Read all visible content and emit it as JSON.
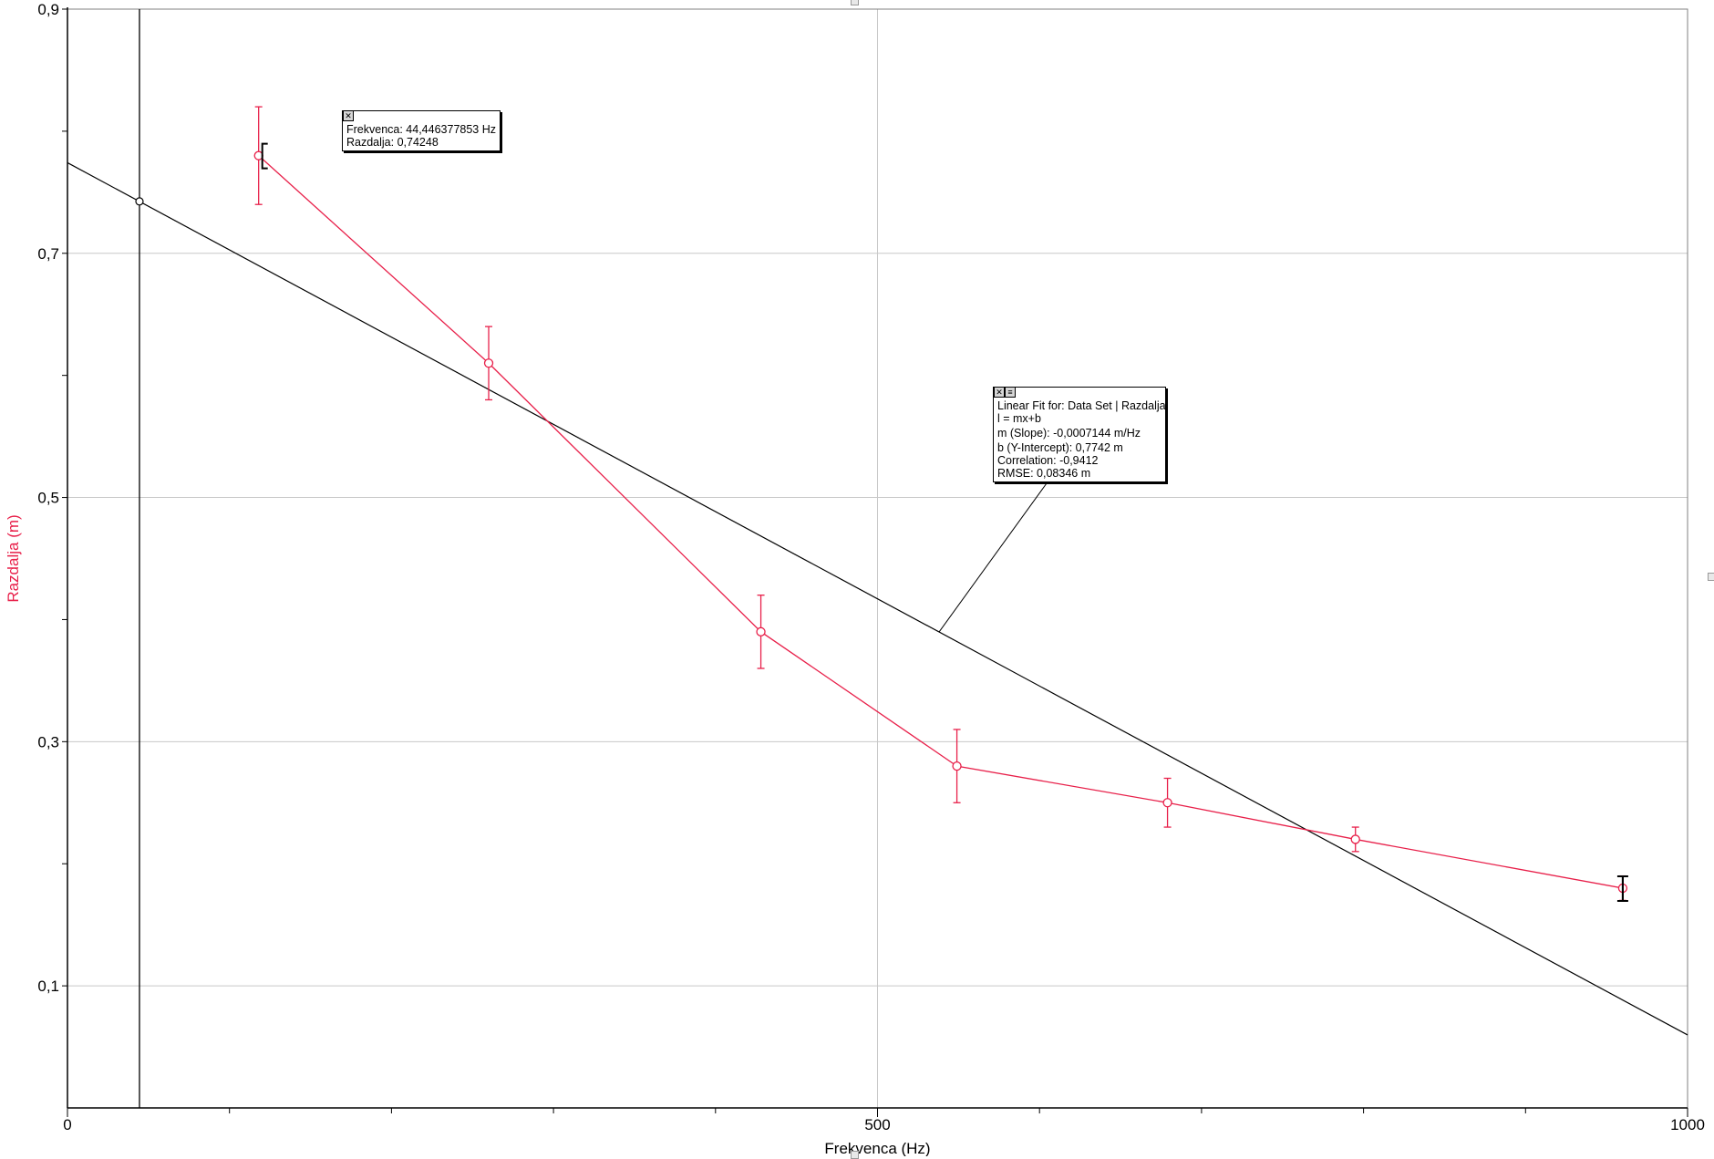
{
  "chart_data": {
    "type": "scatter",
    "xlabel": "Frekvenca (Hz)",
    "ylabel": "Razdalja (m)",
    "xlim": [
      0,
      1000
    ],
    "ylim": [
      0,
      0.9
    ],
    "x_ticks_labeled": [
      "0",
      "500",
      "1000"
    ],
    "x_ticks_values": [
      0,
      500,
      1000
    ],
    "x_minor_step": 100,
    "y_ticks_labeled": [
      "0,1",
      "0,3",
      "0,5",
      "0,7",
      "0,9"
    ],
    "y_ticks_values": [
      0.1,
      0.3,
      0.5,
      0.7,
      0.9
    ],
    "y_minor_step": 0.1,
    "grid": true,
    "series": [
      {
        "name": "Razdalja",
        "color": "#e8204a",
        "connected": true,
        "x": [
          118,
          260,
          428,
          549,
          679,
          795,
          960
        ],
        "y": [
          0.78,
          0.61,
          0.39,
          0.28,
          0.25,
          0.22,
          0.18
        ],
        "error": [
          0.04,
          0.03,
          0.03,
          0.03,
          0.02,
          0.01,
          0.01
        ]
      }
    ],
    "fit": {
      "slope": -0.0007144,
      "intercept": 0.7742,
      "color": "#000000"
    },
    "examine_cursor": {
      "x": 44.446377853,
      "y": 0.74248,
      "label_freq": "Frekvenca: 44,446377853 Hz",
      "label_dist": "Razdalja: 0,74248"
    },
    "fit_box": {
      "title": "Linear Fit for: Data Set | Razdalja",
      "equation": "l = mx+b",
      "slope": "m (Slope): -0,0007144 m/Hz",
      "intercept": "b (Y-Intercept): 0,7742 m",
      "correlation": "Correlation: -0,9412",
      "rmse": "RMSE: 0,08346 m",
      "anchor_x": 538
    }
  },
  "colors": {
    "series": "#e8204a",
    "grid": "#c8c8c8",
    "axis": "#000000",
    "ylabel": "#e8204a"
  }
}
